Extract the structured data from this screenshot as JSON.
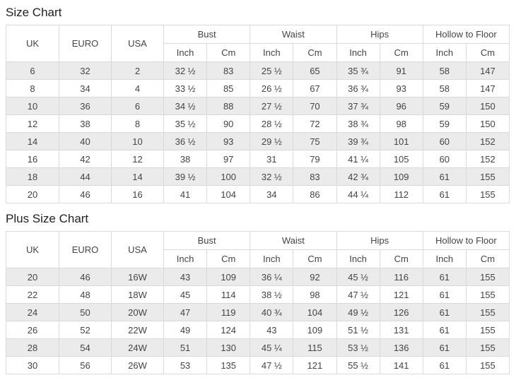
{
  "colors": {
    "background": "#ffffff",
    "stripe": "#ebebeb",
    "border": "#d9d9d9",
    "text": "#444444",
    "title": "#222222"
  },
  "tables": [
    {
      "title": "Size Chart",
      "columns": [
        "UK",
        "EURO",
        "USA"
      ],
      "groups": [
        "Bust",
        "Waist",
        "Hips",
        "Hollow to Floor"
      ],
      "units": [
        "Inch",
        "Cm"
      ],
      "rows": [
        [
          "6",
          "32",
          "2",
          "32 ½",
          "83",
          "25 ½",
          "65",
          "35 ¾",
          "91",
          "58",
          "147"
        ],
        [
          "8",
          "34",
          "4",
          "33 ½",
          "85",
          "26 ½",
          "67",
          "36 ¾",
          "93",
          "58",
          "147"
        ],
        [
          "10",
          "36",
          "6",
          "34 ½",
          "88",
          "27 ½",
          "70",
          "37 ¾",
          "96",
          "59",
          "150"
        ],
        [
          "12",
          "38",
          "8",
          "35 ½",
          "90",
          "28 ½",
          "72",
          "38 ¾",
          "98",
          "59",
          "150"
        ],
        [
          "14",
          "40",
          "10",
          "36 ½",
          "93",
          "29 ½",
          "75",
          "39 ¾",
          "101",
          "60",
          "152"
        ],
        [
          "16",
          "42",
          "12",
          "38",
          "97",
          "31",
          "79",
          "41 ¼",
          "105",
          "60",
          "152"
        ],
        [
          "18",
          "44",
          "14",
          "39 ½",
          "100",
          "32 ½",
          "83",
          "42 ¾",
          "109",
          "61",
          "155"
        ],
        [
          "20",
          "46",
          "16",
          "41",
          "104",
          "34",
          "86",
          "44 ¼",
          "112",
          "61",
          "155"
        ]
      ]
    },
    {
      "title": "Plus Size Chart",
      "columns": [
        "UK",
        "EURO",
        "USA"
      ],
      "groups": [
        "Bust",
        "Waist",
        "Hips",
        "Hollow to Floor"
      ],
      "units": [
        "Inch",
        "Cm"
      ],
      "rows": [
        [
          "20",
          "46",
          "16W",
          "43",
          "109",
          "36 ¼",
          "92",
          "45 ½",
          "116",
          "61",
          "155"
        ],
        [
          "22",
          "48",
          "18W",
          "45",
          "114",
          "38 ½",
          "98",
          "47 ½",
          "121",
          "61",
          "155"
        ],
        [
          "24",
          "50",
          "20W",
          "47",
          "119",
          "40 ¾",
          "104",
          "49 ½",
          "126",
          "61",
          "155"
        ],
        [
          "26",
          "52",
          "22W",
          "49",
          "124",
          "43",
          "109",
          "51 ½",
          "131",
          "61",
          "155"
        ],
        [
          "28",
          "54",
          "24W",
          "51",
          "130",
          "45 ¼",
          "115",
          "53 ½",
          "136",
          "61",
          "155"
        ],
        [
          "30",
          "56",
          "26W",
          "53",
          "135",
          "47 ½",
          "121",
          "55 ½",
          "141",
          "61",
          "155"
        ]
      ]
    }
  ]
}
